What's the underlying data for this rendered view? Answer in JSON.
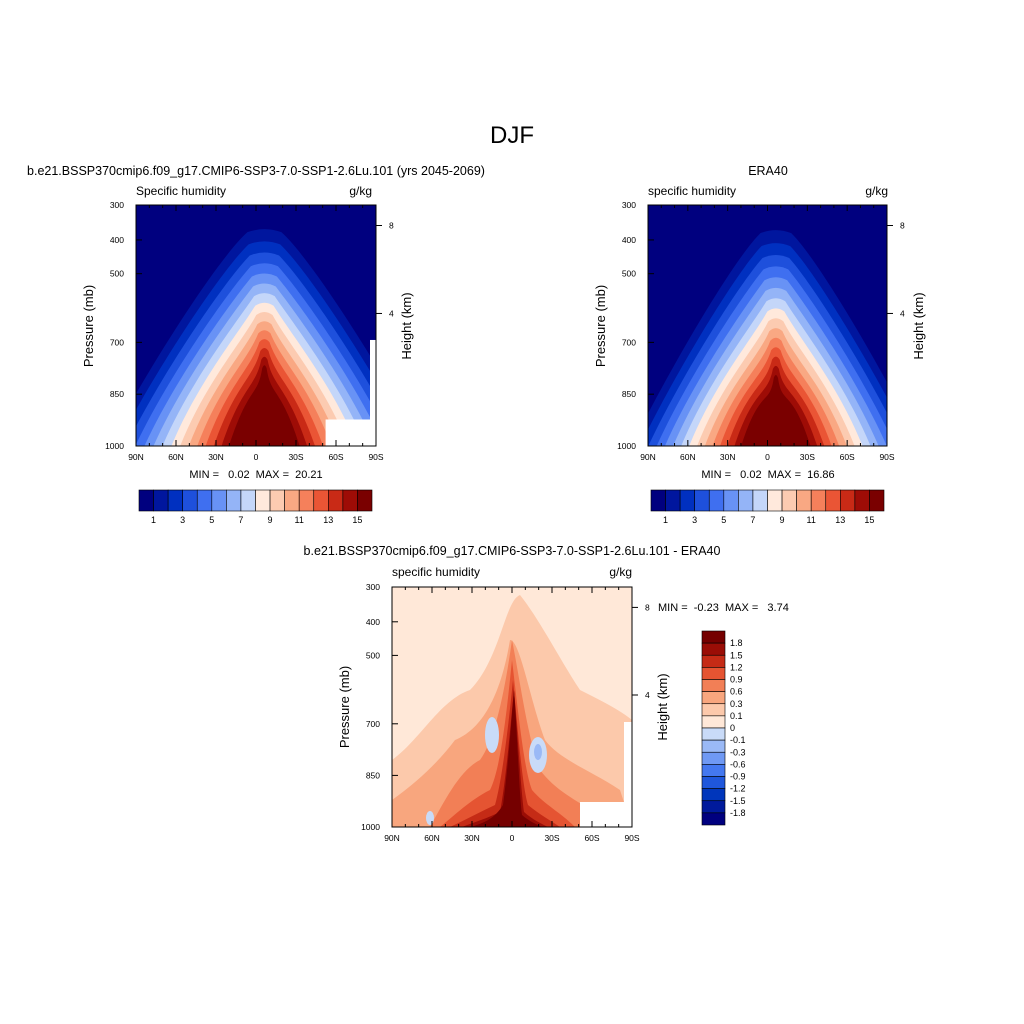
{
  "page": {
    "title": "DJF",
    "colors": {
      "model_levels": [
        "#00007f",
        "#00169e",
        "#0030c0",
        "#1e50dc",
        "#3f6ff0",
        "#6892f5",
        "#94b4f7",
        "#c4d6f9",
        "#ffe9dc",
        "#fccbb1",
        "#f9a883",
        "#f5805b",
        "#ea5535",
        "#c92a16",
        "#9e0c06",
        "#7a0000"
      ],
      "diff_levels": [
        "#00007f",
        "#001a9c",
        "#0036bb",
        "#1f57dc",
        "#4478f0",
        "#6f99f4",
        "#9ab9f6",
        "#c9dbf8",
        "#ffe8d8",
        "#fcc9ab",
        "#f8a67e",
        "#f27f56",
        "#e55432",
        "#c52b16",
        "#9a0d06",
        "#750000"
      ],
      "masked": "#ffffff"
    }
  },
  "chart_data": [
    {
      "type": "heatmap",
      "title": "b.e21.BSSP370cmip6.f09_g17.CMIP6-SSP3-7.0-SSP1-2.6Lu.101 (yrs 2045-2069)",
      "subtitle_left": "Specific humidity",
      "subtitle_right": "g/kg",
      "ylabel": "Pressure (mb)",
      "ylabel_right": "Height (km)",
      "x_ticks": [
        "90N",
        "60N",
        "30N",
        "0",
        "30S",
        "60S",
        "90S"
      ],
      "y_ticks": [
        "300",
        "400",
        "500",
        "700",
        "850",
        "1000"
      ],
      "y_right_ticks": [
        "8",
        "4"
      ],
      "stats": "MIN =   0.02  MAX =  20.21",
      "colorbar_labels": [
        "1",
        "3",
        "5",
        "7",
        "9",
        "11",
        "13",
        "15"
      ],
      "min": 0.02,
      "max": 20.21
    },
    {
      "type": "heatmap",
      "title": "ERA40",
      "subtitle_left": "specific humidity",
      "subtitle_right": "g/kg",
      "ylabel": "Pressure (mb)",
      "ylabel_right": "Height (km)",
      "x_ticks": [
        "90N",
        "60N",
        "30N",
        "0",
        "30S",
        "60S",
        "90S"
      ],
      "y_ticks": [
        "300",
        "400",
        "500",
        "700",
        "850",
        "1000"
      ],
      "y_right_ticks": [
        "8",
        "4"
      ],
      "stats": "MIN =   0.02  MAX =  16.86",
      "colorbar_labels": [
        "1",
        "3",
        "5",
        "7",
        "9",
        "11",
        "13",
        "15"
      ],
      "min": 0.02,
      "max": 16.86
    },
    {
      "type": "heatmap",
      "title": "b.e21.BSSP370cmip6.f09_g17.CMIP6-SSP3-7.0-SSP1-2.6Lu.101 - ERA40",
      "subtitle_left": "specific humidity",
      "subtitle_right": "g/kg",
      "ylabel": "Pressure (mb)",
      "ylabel_right": "Height (km)",
      "x_ticks": [
        "90N",
        "60N",
        "30N",
        "0",
        "30S",
        "60S",
        "90S"
      ],
      "y_ticks": [
        "300",
        "400",
        "500",
        "700",
        "850",
        "1000"
      ],
      "y_right_ticks": [
        "8",
        "4"
      ],
      "stats": "MIN =  -0.23  MAX =   3.74",
      "colorbar_labels": [
        "1.8",
        "1.5",
        "1.2",
        "0.9",
        "0.6",
        "0.3",
        "0.1",
        "0",
        "-0.1",
        "-0.3",
        "-0.6",
        "-0.9",
        "-1.2",
        "-1.5",
        "-1.8"
      ],
      "min": -0.23,
      "max": 3.74
    }
  ]
}
